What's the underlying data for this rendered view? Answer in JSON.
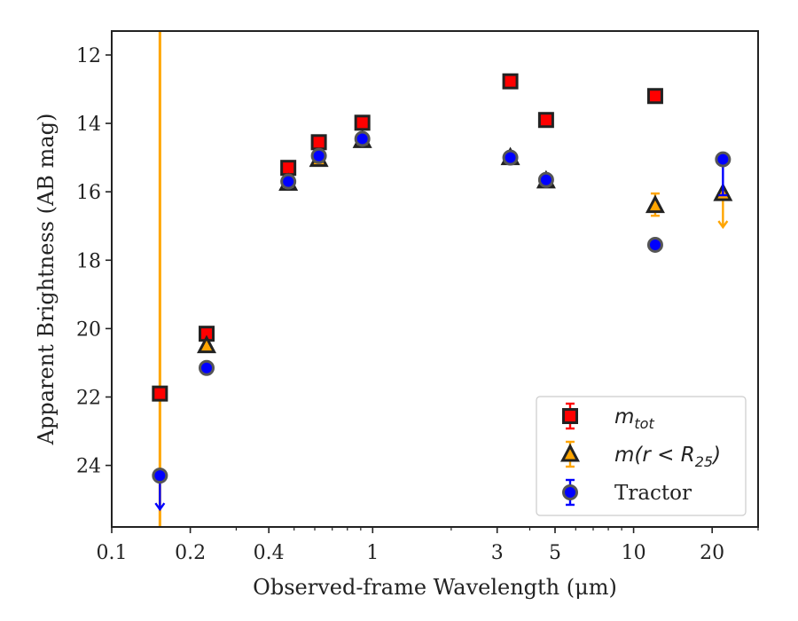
{
  "chart_data": {
    "type": "scatter",
    "xscale": "log",
    "xlim": [
      0.1,
      30
    ],
    "ylim": [
      25.8,
      11.3
    ],
    "y_inverted": true,
    "xlabel": "Observed-frame Wavelength (μm)",
    "ylabel": "Apparent Brightness (AB mag)",
    "xticks": [
      {
        "value": 0.1,
        "label": "0.1"
      },
      {
        "value": 0.2,
        "label": "0.2"
      },
      {
        "value": 0.4,
        "label": "0.4"
      },
      {
        "value": 1,
        "label": "1"
      },
      {
        "value": 3,
        "label": "3"
      },
      {
        "value": 5,
        "label": "5"
      },
      {
        "value": 10,
        "label": "10"
      },
      {
        "value": 20,
        "label": "20"
      }
    ],
    "yticks": [
      {
        "value": 12,
        "label": "12"
      },
      {
        "value": 14,
        "label": "14"
      },
      {
        "value": 16,
        "label": "16"
      },
      {
        "value": 18,
        "label": "18"
      },
      {
        "value": 20,
        "label": "20"
      },
      {
        "value": 22,
        "label": "22"
      },
      {
        "value": 24,
        "label": "24"
      }
    ],
    "legend_placement": "lower-right",
    "series": [
      {
        "name": "m_tot",
        "legend_parts": {
          "base": "m",
          "sub": "tot"
        },
        "marker": "square",
        "color": "#ff0000",
        "edge": "#222222",
        "points": [
          {
            "x": 0.153,
            "y": 21.9
          },
          {
            "x": 0.231,
            "y": 20.15
          },
          {
            "x": 0.475,
            "y": 15.3
          },
          {
            "x": 0.622,
            "y": 14.55
          },
          {
            "x": 0.913,
            "y": 13.98
          },
          {
            "x": 3.37,
            "y": 12.77
          },
          {
            "x": 4.62,
            "y": 13.9
          },
          {
            "x": 12.1,
            "y": 13.2
          }
        ]
      },
      {
        "name": "m(r < R25)",
        "legend_parts": {
          "base": "m(r < R",
          "sub": "25",
          "tail": ")"
        },
        "marker": "triangle",
        "color": "#ffa500",
        "edge": "#222222",
        "points": [
          {
            "x": 0.231,
            "y": 20.5
          },
          {
            "x": 0.475,
            "y": 15.75
          },
          {
            "x": 0.622,
            "y": 15.05
          },
          {
            "x": 0.913,
            "y": 14.5
          },
          {
            "x": 3.37,
            "y": 15.0
          },
          {
            "x": 4.62,
            "y": 15.68
          },
          {
            "x": 12.1,
            "y": 16.4,
            "err": [
              16.05,
              16.7
            ]
          },
          {
            "x": 22.0,
            "y": 16.05,
            "upper_limit": true
          }
        ],
        "vertical_line_x": 0.153
      },
      {
        "name": "Tractor",
        "marker": "circle",
        "color": "#0000ff",
        "edge": "#555555",
        "points": [
          {
            "x": 0.153,
            "y": 24.3,
            "upper_limit": true
          },
          {
            "x": 0.231,
            "y": 21.15
          },
          {
            "x": 0.475,
            "y": 15.7
          },
          {
            "x": 0.622,
            "y": 14.95
          },
          {
            "x": 0.913,
            "y": 14.45
          },
          {
            "x": 3.37,
            "y": 15.0
          },
          {
            "x": 4.62,
            "y": 15.65
          },
          {
            "x": 12.1,
            "y": 17.55
          },
          {
            "x": 22.0,
            "y": 15.05,
            "err": [
              15.05,
              16.1
            ]
          }
        ]
      }
    ],
    "legend": [
      {
        "label": "Tractor"
      }
    ]
  }
}
